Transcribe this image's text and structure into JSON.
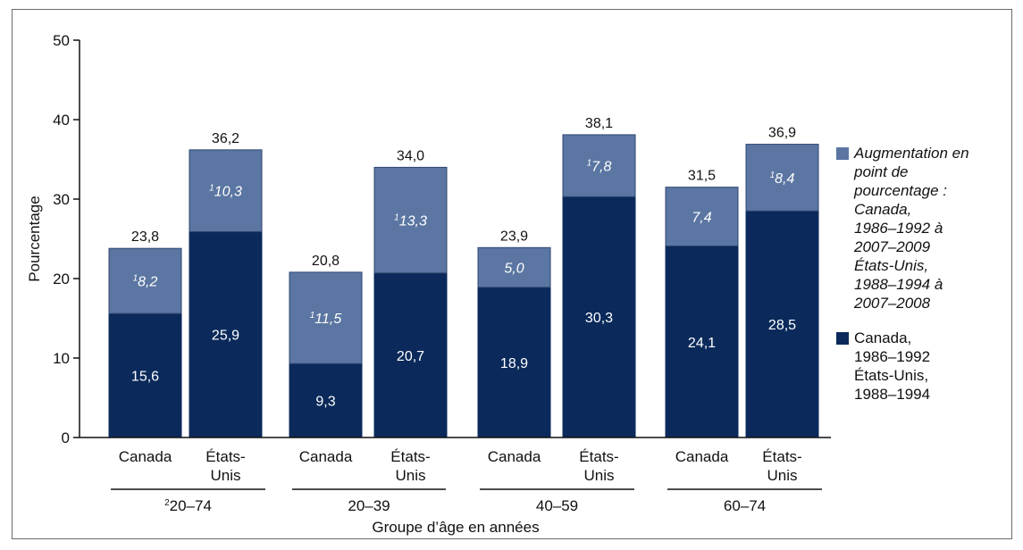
{
  "chart_data": {
    "type": "bar",
    "stacked": true,
    "ylabel": "Pourcentage",
    "xlabel": "Groupe d’âge en années",
    "ylim": [
      0,
      50
    ],
    "yticks": [
      0,
      10,
      20,
      30,
      40,
      50
    ],
    "groups": [
      {
        "label": "20–74",
        "sup": "2"
      },
      {
        "label": "20–39",
        "sup": ""
      },
      {
        "label": "40–59",
        "sup": ""
      },
      {
        "label": "60–74",
        "sup": ""
      }
    ],
    "categories": [
      "Canada",
      "États-Unis"
    ],
    "bars": [
      {
        "group": 0,
        "label_lines": [
          "Canada"
        ],
        "base": 15.6,
        "increase": 8.2,
        "total": "23,8",
        "base_label": "15,6",
        "inc_label": "8,2",
        "inc_sup": "1"
      },
      {
        "group": 0,
        "label_lines": [
          "États-",
          "Unis"
        ],
        "base": 25.9,
        "increase": 10.3,
        "total": "36,2",
        "base_label": "25,9",
        "inc_label": "10,3",
        "inc_sup": "1"
      },
      {
        "group": 1,
        "label_lines": [
          "Canada"
        ],
        "base": 9.3,
        "increase": 11.5,
        "total": "20,8",
        "base_label": "9,3",
        "inc_label": "11,5",
        "inc_sup": "1"
      },
      {
        "group": 1,
        "label_lines": [
          "États-",
          "Unis"
        ],
        "base": 20.7,
        "increase": 13.3,
        "total": "34,0",
        "base_label": "20,7",
        "inc_label": "13,3",
        "inc_sup": "1"
      },
      {
        "group": 2,
        "label_lines": [
          "Canada"
        ],
        "base": 18.9,
        "increase": 5.0,
        "total": "23,9",
        "base_label": "18,9",
        "inc_label": "5,0",
        "inc_sup": ""
      },
      {
        "group": 2,
        "label_lines": [
          "États-",
          "Unis"
        ],
        "base": 30.3,
        "increase": 7.8,
        "total": "38,1",
        "base_label": "30,3",
        "inc_label": "7,8",
        "inc_sup": "1"
      },
      {
        "group": 3,
        "label_lines": [
          "Canada"
        ],
        "base": 24.1,
        "increase": 7.4,
        "total": "31,5",
        "base_label": "24,1",
        "inc_label": "7,4",
        "inc_sup": ""
      },
      {
        "group": 3,
        "label_lines": [
          "États-",
          "Unis"
        ],
        "base": 28.5,
        "increase": 8.4,
        "total": "36,9",
        "base_label": "28,5",
        "inc_label": "8,4",
        "inc_sup": "1"
      }
    ],
    "series": [
      {
        "name": "Augmentation en point de pourcentage : Canada, 1986–1992 à 2007–2009 États-Unis, 1988–1994 à 2007–2008",
        "color": "#5b76a2"
      },
      {
        "name": "Canada, 1986–1992 États-Unis, 1988–1994",
        "color": "#0b2a5b"
      }
    ],
    "grid": false,
    "legend_position": "right"
  },
  "legend": {
    "increase_lines": [
      "Augmentation en",
      "point de",
      "pourcentage :",
      "Canada,",
      "1986–1992 à",
      "2007–2009",
      "États-Unis,",
      "1988–1994 à",
      "2007–2008"
    ],
    "base_lines": [
      "Canada,",
      "1986–1992",
      "États-Unis,",
      "1988–1994"
    ]
  },
  "colors": {
    "increase": "#5b76a2",
    "base": "#0b2a5b",
    "text": "#111111",
    "axis": "#111111"
  }
}
